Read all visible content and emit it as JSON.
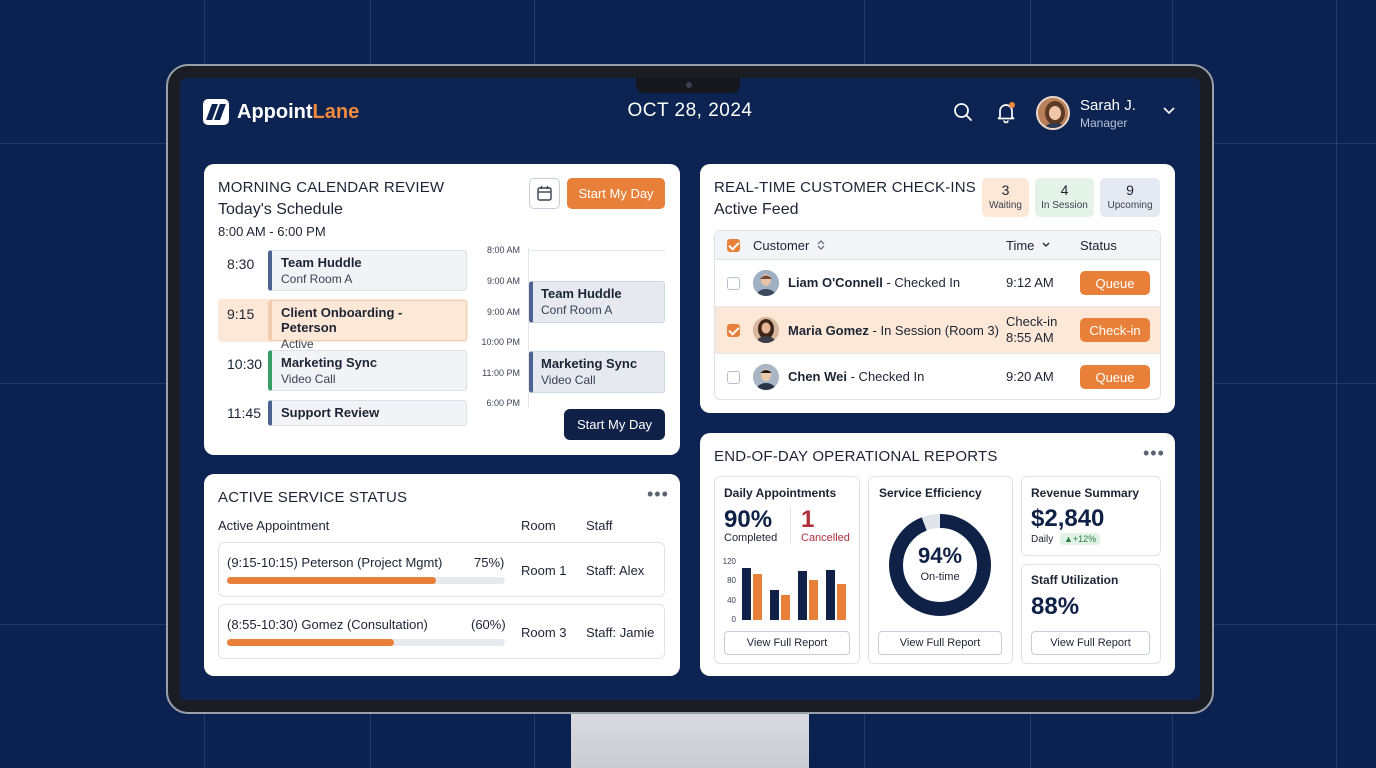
{
  "app": {
    "brand_part1": "Appoint",
    "brand_part2": "Lane",
    "date": "OCT 28, 2024",
    "user_name": "Sarah J.",
    "user_role": "Manager"
  },
  "colors": {
    "accent": "#e9803a",
    "navy": "#0f2147",
    "background": "#0b2150"
  },
  "icons": {
    "search": "search-icon",
    "bell": "bell-icon",
    "calendar": "calendar-icon",
    "chevron": "chevron-down-icon",
    "more": "more-icon"
  },
  "morning": {
    "title": "MORNING CALENDAR REVIEW",
    "subtitle": "Today's Schedule",
    "hours": "8:00 AM - 6:00 PM",
    "start_button": "Start My Day",
    "start_button_bottom": "Start My Day",
    "items": [
      {
        "time": "8:30",
        "title": "Team Huddle",
        "sub": "Conf Room A"
      },
      {
        "time": "9:15",
        "title": "Client Onboarding - Peterson",
        "sub": "Active"
      },
      {
        "time": "10:30",
        "title": "Marketing Sync",
        "sub": "Video Call"
      },
      {
        "time": "11:45",
        "title": "Support Review",
        "sub": ""
      }
    ],
    "timeline_labels": [
      "8:00 AM",
      "9:00 AM",
      "9:00 AM",
      "10:00 PM",
      "11:00 PM",
      "6:00 PM"
    ],
    "timeline_blocks": [
      {
        "title": "Team Huddle",
        "sub": "Conf Room A"
      },
      {
        "title": "Marketing Sync",
        "sub": "Video Call"
      }
    ]
  },
  "checkins": {
    "title": "REAL-TIME CUSTOMER CHECK-INS",
    "subtitle": "Active Feed",
    "badges": [
      {
        "count": "3",
        "label": "Waiting"
      },
      {
        "count": "4",
        "label": "In Session"
      },
      {
        "count": "9",
        "label": "Upcoming"
      }
    ],
    "columns": {
      "customer": "Customer",
      "time": "Time",
      "status": "Status"
    },
    "rows": [
      {
        "name": "Liam O'Connell",
        "detail": " - Checked In",
        "time_line1": "9:12 AM",
        "time_line2": "",
        "action": "Queue",
        "checked": false
      },
      {
        "name": "Maria Gomez",
        "detail": " - In Session (Room 3)",
        "time_line1": "Check-in",
        "time_line2": "8:55 AM",
        "action": "Check-in",
        "checked": true
      },
      {
        "name": "Chen Wei",
        "detail": " - Checked In",
        "time_line1": "9:20 AM",
        "time_line2": "",
        "action": "Queue",
        "checked": false
      }
    ]
  },
  "service": {
    "title": "ACTIVE SERVICE STATUS",
    "columns": {
      "appointment": "Active Appointment",
      "room": "Room",
      "staff": "Staff"
    },
    "rows": [
      {
        "label": "(9:15-10:15) Peterson (Project Mgmt)",
        "pct_label": "75%)",
        "progress": 0.75,
        "room": "Room 1",
        "staff": "Staff: Alex"
      },
      {
        "label": "(8:55-10:30) Gomez (Consultation)",
        "pct_label": "(60%)",
        "progress": 0.6,
        "room": "Room 3",
        "staff": "Staff: Jamie"
      }
    ]
  },
  "reports": {
    "title": "END-OF-DAY OPERATIONAL REPORTS",
    "daily": {
      "title": "Daily Appointments",
      "completed_value": "90%",
      "completed_label": "Completed",
      "cancelled_value": "1",
      "cancelled_label": "Cancelled",
      "y_ticks": [
        "120",
        "80",
        "40",
        "0"
      ],
      "y_max": 120,
      "bars": [
        {
          "navy": 105,
          "orange": 92
        },
        {
          "navy": 60,
          "orange": 50
        },
        {
          "navy": 98,
          "orange": 80
        },
        {
          "navy": 100,
          "orange": 72
        }
      ],
      "button": "View Full Report"
    },
    "efficiency": {
      "title": "Service Efficiency",
      "value": "94%",
      "label": "On-time",
      "fraction": 0.94,
      "button": "View Full Report"
    },
    "revenue": {
      "title": "Revenue Summary",
      "value": "$2,840",
      "period": "Daily",
      "growth": "+12%"
    },
    "utilization": {
      "title": "Staff Utilization",
      "value": "88%",
      "button": "View Full Report"
    }
  }
}
